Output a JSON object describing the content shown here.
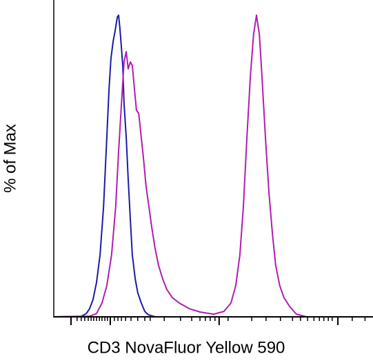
{
  "chart_data": {
    "type": "line",
    "xlabel": "CD3 NovaFluor Yellow 590",
    "ylabel": "% of Max",
    "xlim": [
      0,
      100
    ],
    "ylim": [
      0,
      100
    ],
    "xticks": [
      5.4,
      17.7,
      51.8,
      89.0
    ],
    "xminor_ticks": [
      7.3,
      8.6,
      9.7,
      10.8,
      11.7,
      12.5,
      13.4,
      14.3,
      15.1,
      16.0,
      16.8,
      19.0,
      20.1,
      21.2,
      22.5,
      24.2,
      26.3,
      28.5,
      30.2,
      34.6,
      39.7,
      43.2,
      45.8,
      47.5,
      49.0,
      50.5,
      54.6,
      62.0,
      66.5,
      71.0,
      74.8,
      77.3,
      79.5,
      81.5,
      83.2,
      84.6,
      86.0,
      87.2,
      93.5,
      97.5
    ],
    "series": [
      {
        "color": "#1a1aa6",
        "x": [
          0,
          8.6,
          10.2,
          11.2,
          12.3,
          13.4,
          14.5,
          15.6,
          16.6,
          17.3,
          17.9,
          18.6,
          19.2,
          19.9,
          20.3,
          20.7,
          21.2,
          21.6,
          22.0,
          22.7,
          23.3,
          24.0,
          24.6,
          25.5,
          26.3,
          27.4,
          28.5,
          29.6,
          31.7,
          100
        ],
        "values": [
          0,
          0.2,
          1.1,
          2.7,
          5.7,
          11.4,
          20.5,
          36.5,
          59.4,
          75.3,
          85.6,
          91.3,
          94.7,
          99.3,
          100,
          95.9,
          89.0,
          83.3,
          70.8,
          59.4,
          45.7,
          32.0,
          20.5,
          12.6,
          8.0,
          4.6,
          1.8,
          0.7,
          0,
          0
        ]
      },
      {
        "color": "#b01cb0",
        "x": [
          0,
          11.2,
          13.4,
          15.1,
          16.6,
          18.1,
          19.4,
          20.3,
          21.2,
          22.0,
          22.7,
          23.3,
          24.0,
          24.6,
          25.3,
          25.9,
          26.6,
          27.2,
          28.1,
          28.9,
          29.8,
          30.7,
          31.7,
          32.8,
          34.1,
          35.4,
          37.1,
          39.3,
          42.5,
          45.8,
          50.1,
          53.3,
          55.5,
          57.0,
          58.3,
          59.4,
          60.5,
          61.6,
          62.6,
          63.5,
          64.4,
          65.2,
          66.3,
          67.4,
          68.5,
          69.5,
          70.8,
          72.1,
          73.9,
          76.0,
          79.3,
          100
        ],
        "values": [
          0,
          0.2,
          1.1,
          4.6,
          10.3,
          20.5,
          36.5,
          54.8,
          70.8,
          84.5,
          87.9,
          82.2,
          84.5,
          83.3,
          75.3,
          68.5,
          67.4,
          61.6,
          52.5,
          43.4,
          36.5,
          29.7,
          22.8,
          17.1,
          12.6,
          9.1,
          6.4,
          4.6,
          2.7,
          1.6,
          0.9,
          1.8,
          4.6,
          10.3,
          20.5,
          36.5,
          59.4,
          79.9,
          93.6,
          100,
          93.6,
          79.9,
          59.4,
          41.1,
          27.4,
          17.1,
          10.3,
          6.4,
          3.4,
          0.9,
          0,
          0
        ]
      }
    ]
  }
}
